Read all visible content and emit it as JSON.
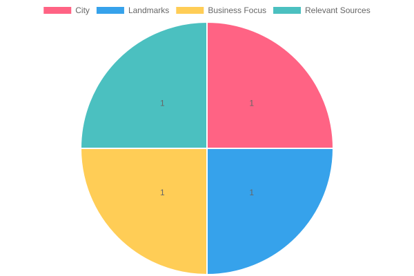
{
  "chart_data": {
    "type": "pie",
    "categories": [
      "City",
      "Landmarks",
      "Business Focus",
      "Relevant Sources"
    ],
    "values": [
      1,
      1,
      1,
      1
    ],
    "colors": [
      "#ff6384",
      "#36a2eb",
      "#ffcd56",
      "#4bc0c0"
    ],
    "legend": "top"
  }
}
